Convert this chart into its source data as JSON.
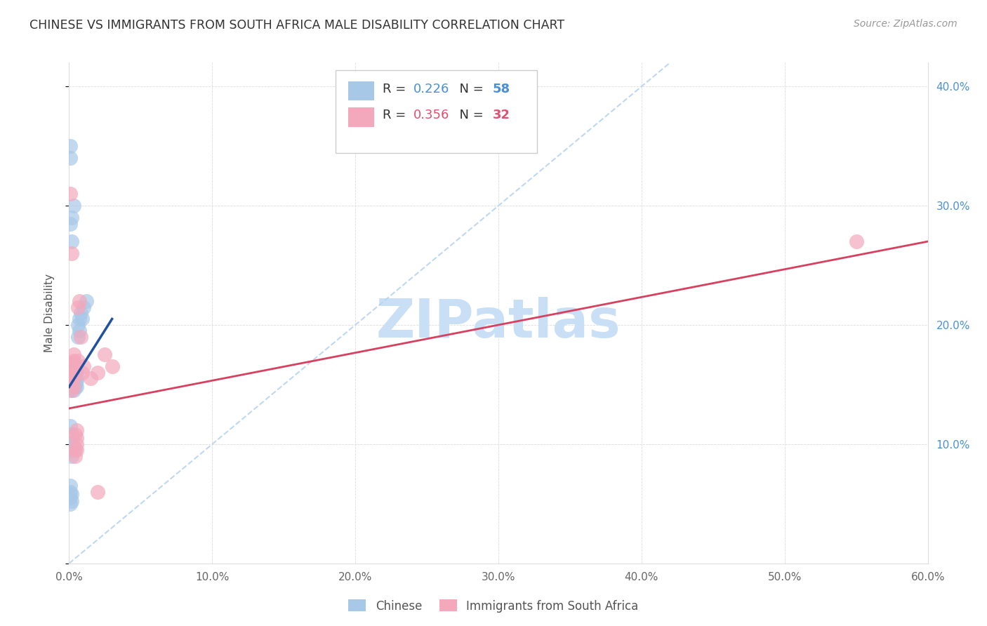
{
  "title": "CHINESE VS IMMIGRANTS FROM SOUTH AFRICA MALE DISABILITY CORRELATION CHART",
  "source": "Source: ZipAtlas.com",
  "ylabel": "Male Disability",
  "xlim": [
    0.0,
    0.6
  ],
  "ylim": [
    0.0,
    0.42
  ],
  "xticks": [
    0.0,
    0.1,
    0.2,
    0.3,
    0.4,
    0.5,
    0.6
  ],
  "yticks": [
    0.0,
    0.1,
    0.2,
    0.3,
    0.4
  ],
  "xticklabels": [
    "0.0%",
    "10.0%",
    "20.0%",
    "30.0%",
    "40.0%",
    "50.0%",
    "60.0%"
  ],
  "yticklabels": [
    "",
    "10.0%",
    "20.0%",
    "30.0%",
    "40.0%"
  ],
  "legend1_label": "Chinese",
  "legend2_label": "Immigrants from South Africa",
  "R1": "0.226",
  "N1": "58",
  "R2": "0.356",
  "N2": "32",
  "blue_scatter": "#a8c8e8",
  "pink_scatter": "#f4a8bc",
  "blue_line": "#2050a0",
  "pink_line": "#d84060",
  "dashed_line": "#b8d4f0",
  "watermark": "ZIPatlas",
  "watermark_color": "#c8dff5",
  "bg_color": "#ffffff",
  "grid_color": "#dddddd",
  "title_color": "#333333",
  "axis_label_color": "#555555",
  "ytick_color": "#4a90d9",
  "source_color": "#999999",
  "chinese_x": [
    0.001,
    0.001,
    0.001,
    0.001,
    0.001,
    0.001,
    0.002,
    0.002,
    0.002,
    0.002,
    0.002,
    0.002,
    0.002,
    0.002,
    0.002,
    0.003,
    0.003,
    0.003,
    0.003,
    0.003,
    0.003,
    0.003,
    0.003,
    0.004,
    0.004,
    0.004,
    0.004,
    0.004,
    0.005,
    0.005,
    0.005,
    0.005,
    0.006,
    0.006,
    0.007,
    0.007,
    0.008,
    0.009,
    0.01,
    0.012,
    0.001,
    0.002,
    0.002,
    0.003,
    0.001,
    0.002,
    0.001,
    0.001,
    0.002,
    0.003,
    0.001,
    0.001,
    0.001,
    0.001,
    0.002,
    0.002,
    0.001,
    0.002
  ],
  "chinese_y": [
    0.155,
    0.158,
    0.15,
    0.152,
    0.145,
    0.162,
    0.155,
    0.148,
    0.16,
    0.153,
    0.157,
    0.163,
    0.15,
    0.148,
    0.155,
    0.152,
    0.168,
    0.158,
    0.145,
    0.155,
    0.16,
    0.148,
    0.153,
    0.155,
    0.15,
    0.16,
    0.148,
    0.155,
    0.153,
    0.148,
    0.155,
    0.16,
    0.2,
    0.19,
    0.205,
    0.195,
    0.21,
    0.205,
    0.215,
    0.22,
    0.115,
    0.108,
    0.1,
    0.098,
    0.095,
    0.09,
    0.35,
    0.285,
    0.29,
    0.3,
    0.05,
    0.055,
    0.06,
    0.065,
    0.058,
    0.052,
    0.34,
    0.27
  ],
  "sa_x": [
    0.001,
    0.001,
    0.002,
    0.002,
    0.002,
    0.003,
    0.003,
    0.003,
    0.003,
    0.004,
    0.004,
    0.004,
    0.005,
    0.005,
    0.005,
    0.006,
    0.007,
    0.008,
    0.009,
    0.01,
    0.015,
    0.02,
    0.025,
    0.03,
    0.001,
    0.002,
    0.003,
    0.004,
    0.005,
    0.006,
    0.55,
    0.02
  ],
  "sa_y": [
    0.155,
    0.165,
    0.145,
    0.168,
    0.158,
    0.17,
    0.175,
    0.155,
    0.148,
    0.16,
    0.095,
    0.09,
    0.1,
    0.105,
    0.095,
    0.215,
    0.22,
    0.19,
    0.16,
    0.165,
    0.155,
    0.16,
    0.175,
    0.165,
    0.31,
    0.26,
    0.158,
    0.108,
    0.112,
    0.17,
    0.27,
    0.06
  ],
  "blue_line_x": [
    0.0,
    0.03
  ],
  "blue_line_y": [
    0.148,
    0.205
  ],
  "pink_line_x": [
    0.0,
    0.6
  ],
  "pink_line_y": [
    0.13,
    0.27
  ]
}
